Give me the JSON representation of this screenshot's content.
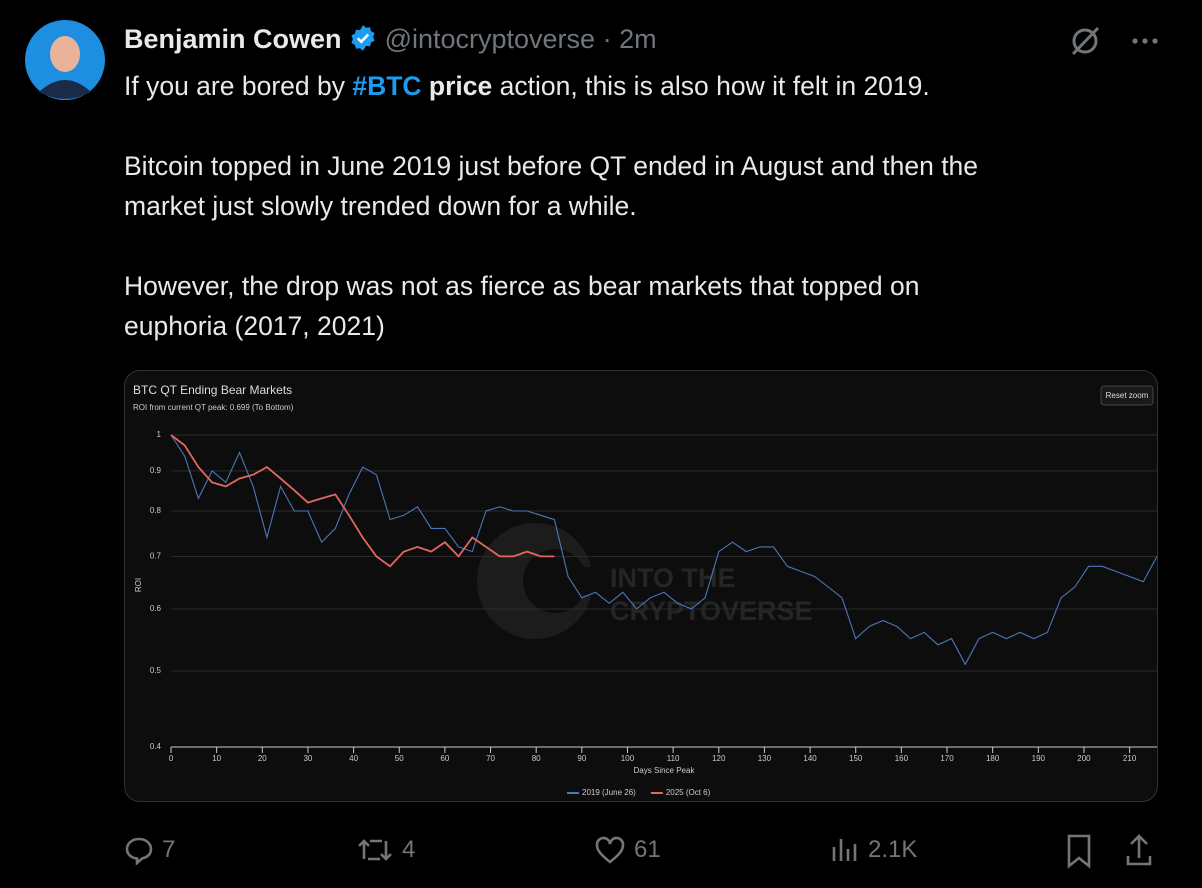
{
  "tweet": {
    "name": "Benjamin Cowen",
    "handle": "@intocryptoverse",
    "time": "· 2m",
    "paragraphs": [
      [
        "If you are bored by",
        "#BTC",
        "price",
        "action, this is also how it felt in 2019."
      ],
      [
        "Bitcoin topped in June 2019 just before QT ended in August and then the",
        "market just slowly trended down for a while."
      ],
      [
        "However, the drop was not as fierce as bear markets that topped on",
        "euphoria (2017, 2021)"
      ]
    ],
    "stats": {
      "replies": "7",
      "reposts": "4",
      "likes": "61",
      "views": "2.1K"
    }
  },
  "chart_data": {
    "type": "line",
    "title": "BTC QT Ending Bear Markets",
    "subtitle": "ROI from current QT peak: 0.699 (To Bottom)",
    "x_label": "Days Since Peak",
    "y_label": "ROI",
    "button": "Reset zoom",
    "watermark": [
      "INTO THE",
      "CRYPTOVERSE"
    ],
    "log_y": true,
    "grid": true,
    "legend": "bottom",
    "xlim": [
      0,
      216
    ],
    "ylim": [
      0.4,
      1
    ],
    "xticks": [
      0,
      10,
      20,
      30,
      40,
      50,
      60,
      70,
      80,
      90,
      100,
      110,
      120,
      130,
      140,
      150,
      160,
      170,
      180,
      190,
      200,
      210
    ],
    "yticks": [
      0.4,
      0.5,
      0.6,
      0.7,
      0.8,
      0.9,
      1
    ],
    "x": [
      0,
      3,
      6,
      9,
      12,
      15,
      18,
      21,
      24,
      27,
      30,
      33,
      36,
      39,
      42,
      45,
      48,
      51,
      54,
      57,
      60,
      63,
      66,
      69,
      72,
      75,
      78,
      81,
      84,
      87,
      90,
      93,
      96,
      99,
      102,
      105,
      108,
      111,
      114,
      117,
      120,
      123,
      126,
      129,
      132,
      135,
      138,
      141,
      144,
      147,
      150,
      153,
      156,
      159,
      162,
      165,
      168,
      171,
      174,
      177,
      180,
      183,
      186,
      189,
      192,
      195,
      198,
      201,
      204,
      207,
      210,
      213,
      216
    ],
    "series": [
      {
        "name": "2019 (June 26)",
        "color": "#4a78b8",
        "values": [
          1.0,
          0.94,
          0.83,
          0.9,
          0.87,
          0.95,
          0.86,
          0.74,
          0.86,
          0.8,
          0.8,
          0.73,
          0.76,
          0.84,
          0.91,
          0.89,
          0.78,
          0.79,
          0.81,
          0.76,
          0.76,
          0.72,
          0.71,
          0.8,
          0.81,
          0.8,
          0.8,
          0.79,
          0.78,
          0.66,
          0.62,
          0.63,
          0.61,
          0.63,
          0.6,
          0.62,
          0.63,
          0.61,
          0.6,
          0.62,
          0.71,
          0.73,
          0.71,
          0.72,
          0.72,
          0.68,
          0.67,
          0.66,
          0.64,
          0.62,
          0.55,
          0.57,
          0.58,
          0.57,
          0.55,
          0.56,
          0.54,
          0.55,
          0.51,
          0.55,
          0.56,
          0.55,
          0.56,
          0.55,
          0.56,
          0.62,
          0.64,
          0.68,
          0.68,
          0.67,
          0.66,
          0.65,
          0.7
        ]
      },
      {
        "name": "2025 (Oct 6)",
        "color": "#e2675f",
        "values": [
          1.0,
          0.97,
          0.91,
          0.87,
          0.86,
          0.88,
          0.89,
          0.91,
          0.88,
          0.85,
          0.82,
          0.83,
          0.84,
          0.79,
          0.74,
          0.7,
          0.68,
          0.71,
          0.72,
          0.71,
          0.73,
          0.7,
          0.74,
          0.72,
          0.7,
          0.7,
          0.71,
          0.7,
          0.7,
          null,
          null,
          null,
          null,
          null,
          null,
          null,
          null,
          null,
          null,
          null,
          null,
          null,
          null,
          null,
          null,
          null,
          null,
          null,
          null,
          null,
          null,
          null,
          null,
          null,
          null,
          null,
          null,
          null,
          null,
          null,
          null,
          null,
          null,
          null,
          null,
          null,
          null,
          null,
          null,
          null,
          null,
          null,
          null
        ]
      }
    ]
  }
}
